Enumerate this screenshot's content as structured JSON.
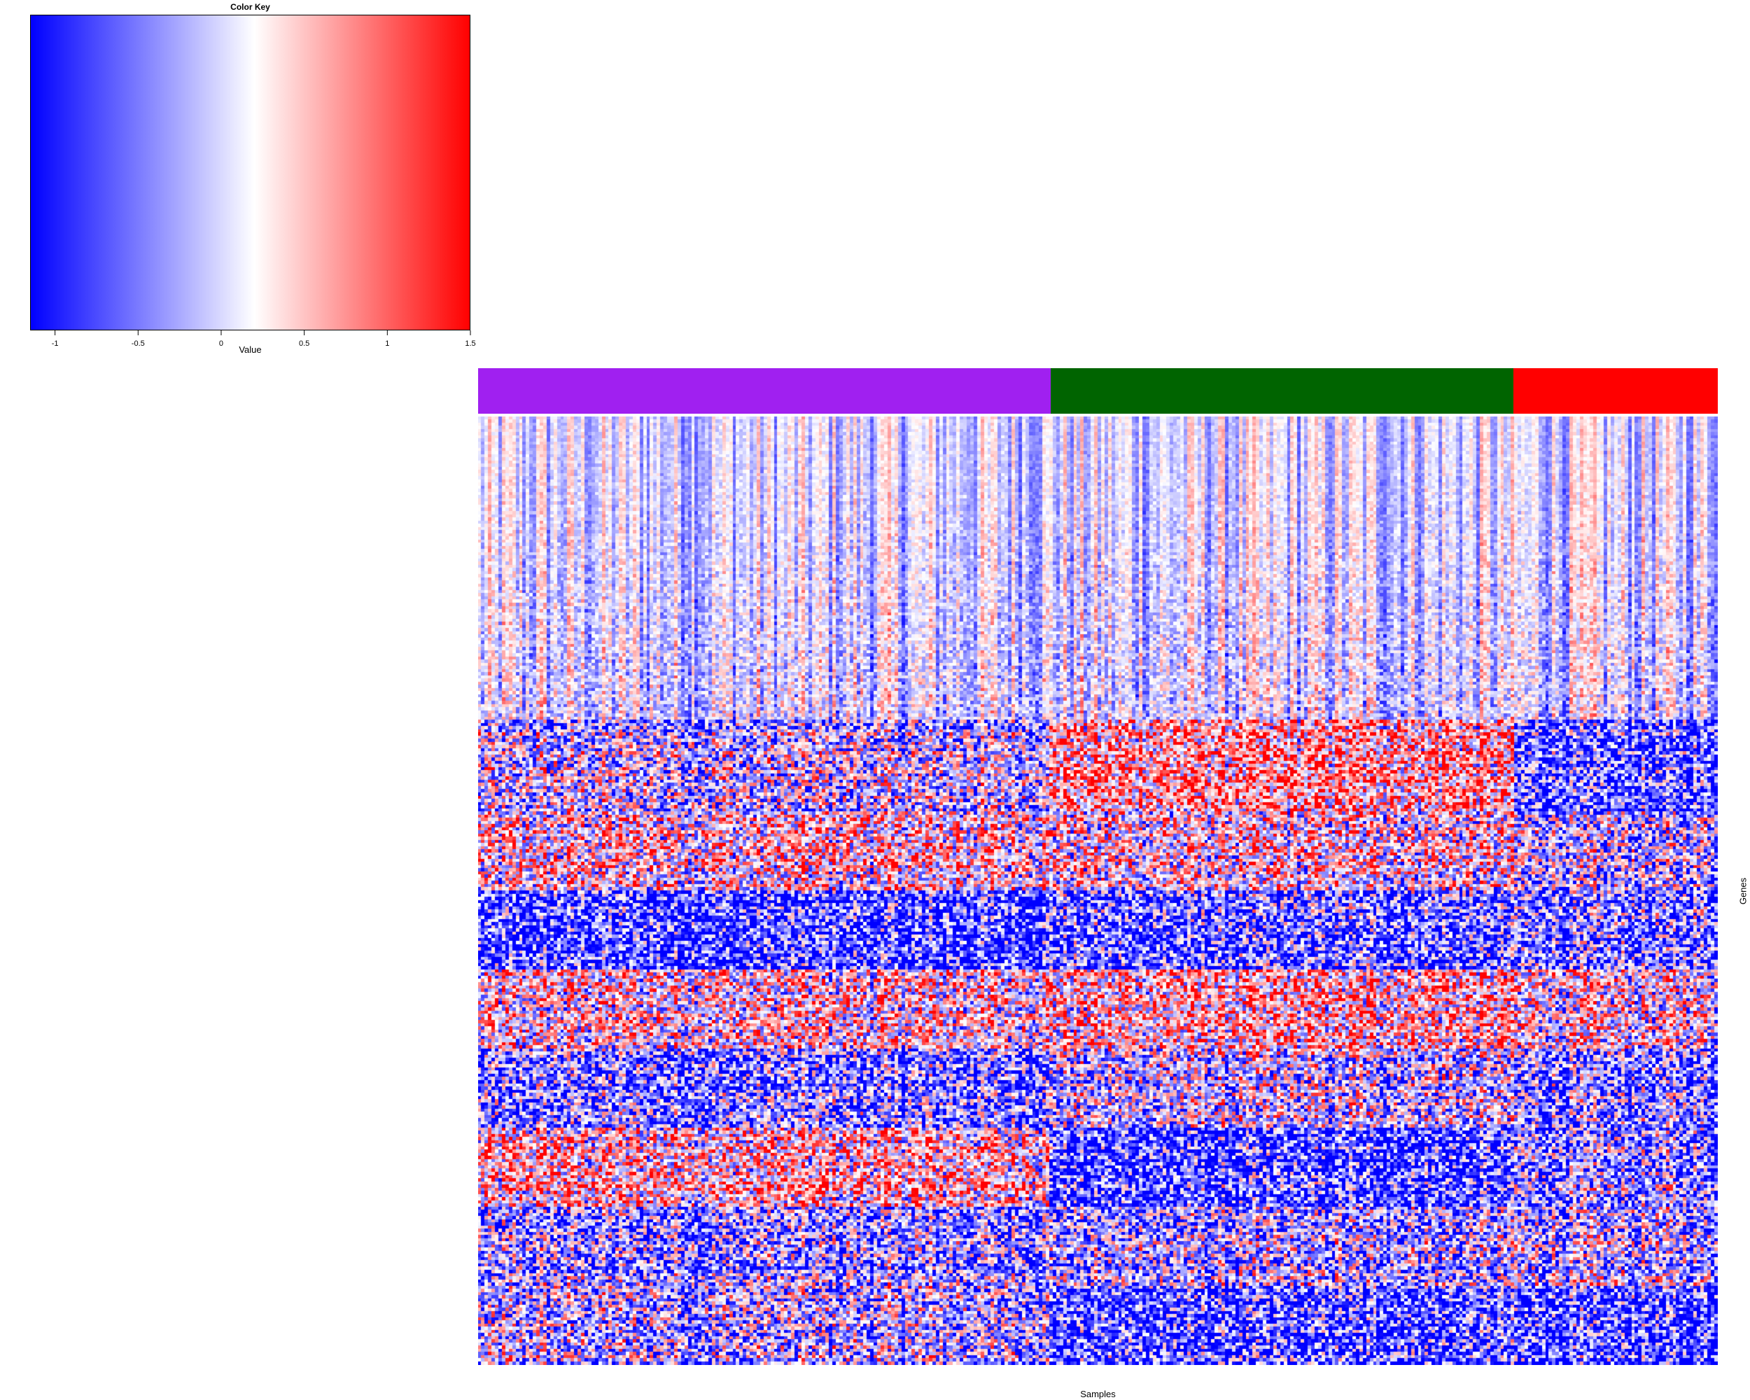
{
  "chart_data": {
    "type": "heatmap",
    "xlabel": "Samples",
    "ylabel": "Genes",
    "color_key": {
      "title": "Color Key",
      "label": "Value",
      "range": [
        -1.15,
        1.5
      ],
      "ticks": [
        {
          "value": -1,
          "label": "-1"
        },
        {
          "value": -0.5,
          "label": "-0.5"
        },
        {
          "value": 0,
          "label": "0"
        },
        {
          "value": 0.5,
          "label": "0.5"
        },
        {
          "value": 1,
          "label": "1"
        },
        {
          "value": 1.5,
          "label": "1.5"
        }
      ],
      "colors": [
        "#0000ff",
        "#ffffff",
        "#ff0000"
      ],
      "midpoint": 0.2
    },
    "groups": [
      {
        "color": "#a020f0",
        "fraction": 0.462
      },
      {
        "color": "#006400",
        "fraction": 0.373
      },
      {
        "color": "#ff0000",
        "fraction": 0.165
      }
    ],
    "n_samples": 360,
    "n_genes": 300
  }
}
